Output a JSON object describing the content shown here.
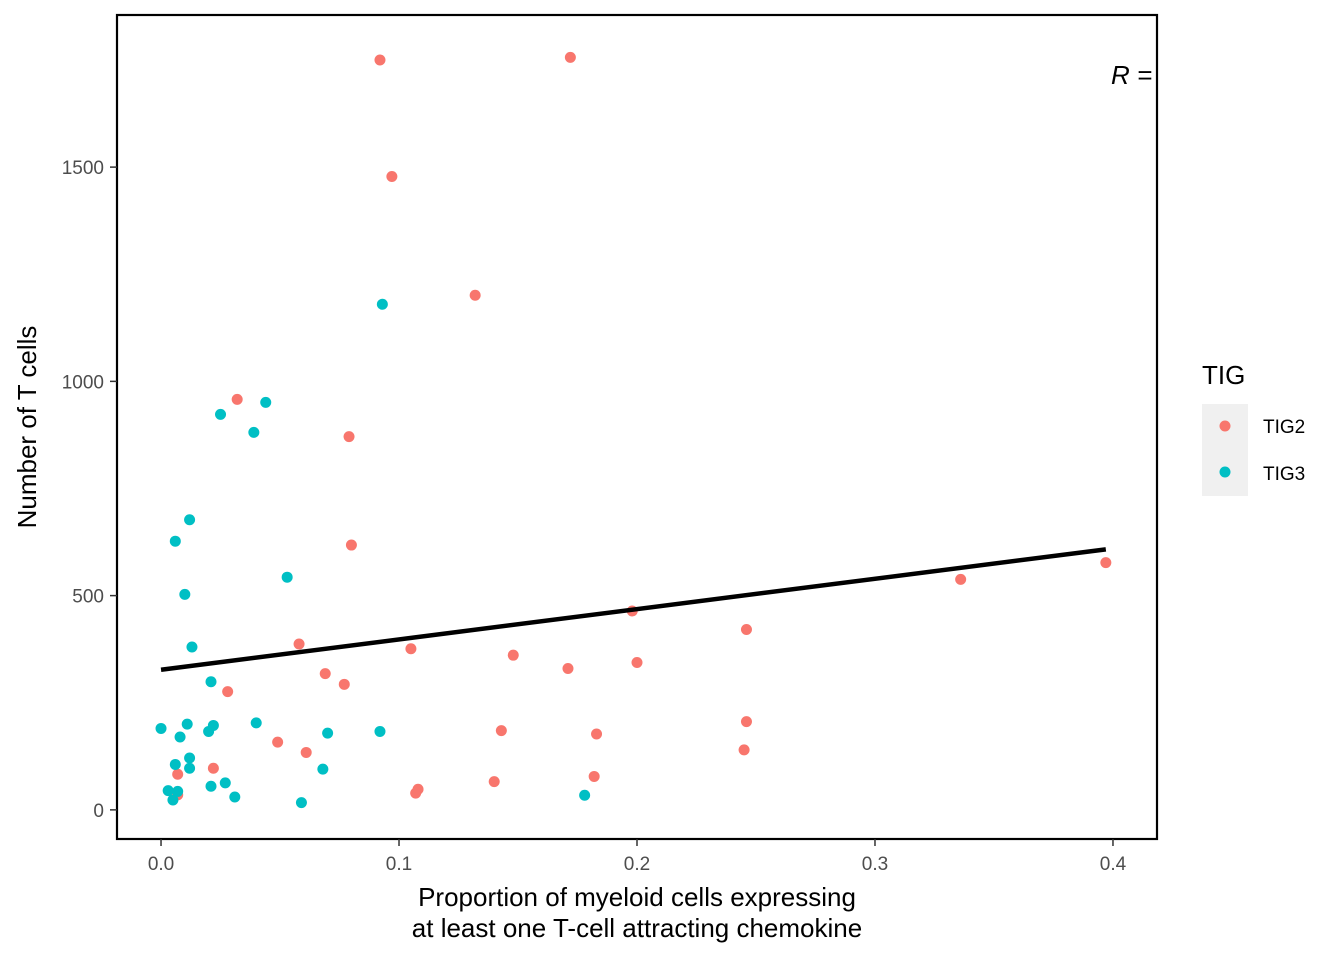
{
  "chart_data": {
    "type": "scatter",
    "title": "",
    "xlabel_line1": "Proportion of myeloid cells expressing",
    "xlabel_line2": "at least one T-cell attracting chemokine",
    "ylabel": "Number of T cells",
    "xlim": [
      -0.0185,
      0.4185
    ],
    "ylim": [
      -68,
      1855
    ],
    "x_ticks": [
      0.0,
      0.1,
      0.2,
      0.3,
      0.4
    ],
    "x_tick_labels": [
      "0.0",
      "0.1",
      "0.2",
      "0.3",
      "0.4"
    ],
    "y_ticks": [
      0,
      500,
      1000,
      1500
    ],
    "y_tick_labels": [
      "0",
      "500",
      "1000",
      "1500"
    ],
    "grid": false,
    "legend_placement": "right",
    "legend": {
      "title": "TIG",
      "entries": [
        {
          "name": "TIG2",
          "color": "#F8766D"
        },
        {
          "name": "TIG3",
          "color": "#00BFC4"
        }
      ]
    },
    "annotation": "R =",
    "fit_line": {
      "x": [
        0.0,
        0.397
      ],
      "y": [
        327,
        608
      ],
      "color": "#000000"
    },
    "series": [
      {
        "name": "TIG2",
        "color": "#F8766D",
        "points": [
          [
            0.092,
            1750
          ],
          [
            0.172,
            1756
          ],
          [
            0.097,
            1478
          ],
          [
            0.132,
            1201
          ],
          [
            0.032,
            958
          ],
          [
            0.079,
            871
          ],
          [
            0.08,
            618
          ],
          [
            0.397,
            577
          ],
          [
            0.336,
            538
          ],
          [
            0.198,
            464
          ],
          [
            0.246,
            421
          ],
          [
            0.058,
            387
          ],
          [
            0.105,
            376
          ],
          [
            0.148,
            361
          ],
          [
            0.2,
            344
          ],
          [
            0.171,
            330
          ],
          [
            0.069,
            318
          ],
          [
            0.077,
            293
          ],
          [
            0.028,
            276
          ],
          [
            0.246,
            206
          ],
          [
            0.143,
            185
          ],
          [
            0.183,
            177
          ],
          [
            0.049,
            158
          ],
          [
            0.245,
            140
          ],
          [
            0.061,
            134
          ],
          [
            0.022,
            97
          ],
          [
            0.007,
            83
          ],
          [
            0.182,
            78
          ],
          [
            0.14,
            66
          ],
          [
            0.108,
            48
          ],
          [
            0.107,
            39
          ],
          [
            0.007,
            35
          ]
        ]
      },
      {
        "name": "TIG3",
        "color": "#00BFC4",
        "points": [
          [
            0.093,
            1180
          ],
          [
            0.044,
            951
          ],
          [
            0.025,
            923
          ],
          [
            0.039,
            881
          ],
          [
            0.012,
            677
          ],
          [
            0.006,
            627
          ],
          [
            0.053,
            543
          ],
          [
            0.01,
            503
          ],
          [
            0.013,
            380
          ],
          [
            0.021,
            299
          ],
          [
            0.04,
            203
          ],
          [
            0.011,
            200
          ],
          [
            0.022,
            197
          ],
          [
            0.0,
            190
          ],
          [
            0.02,
            183
          ],
          [
            0.092,
            183
          ],
          [
            0.07,
            179
          ],
          [
            0.008,
            170
          ],
          [
            0.012,
            121
          ],
          [
            0.006,
            106
          ],
          [
            0.012,
            97
          ],
          [
            0.068,
            95
          ],
          [
            0.027,
            63
          ],
          [
            0.021,
            55
          ],
          [
            0.003,
            45
          ],
          [
            0.007,
            43
          ],
          [
            0.178,
            34
          ],
          [
            0.031,
            30
          ],
          [
            0.005,
            23
          ],
          [
            0.059,
            17
          ]
        ]
      }
    ]
  }
}
